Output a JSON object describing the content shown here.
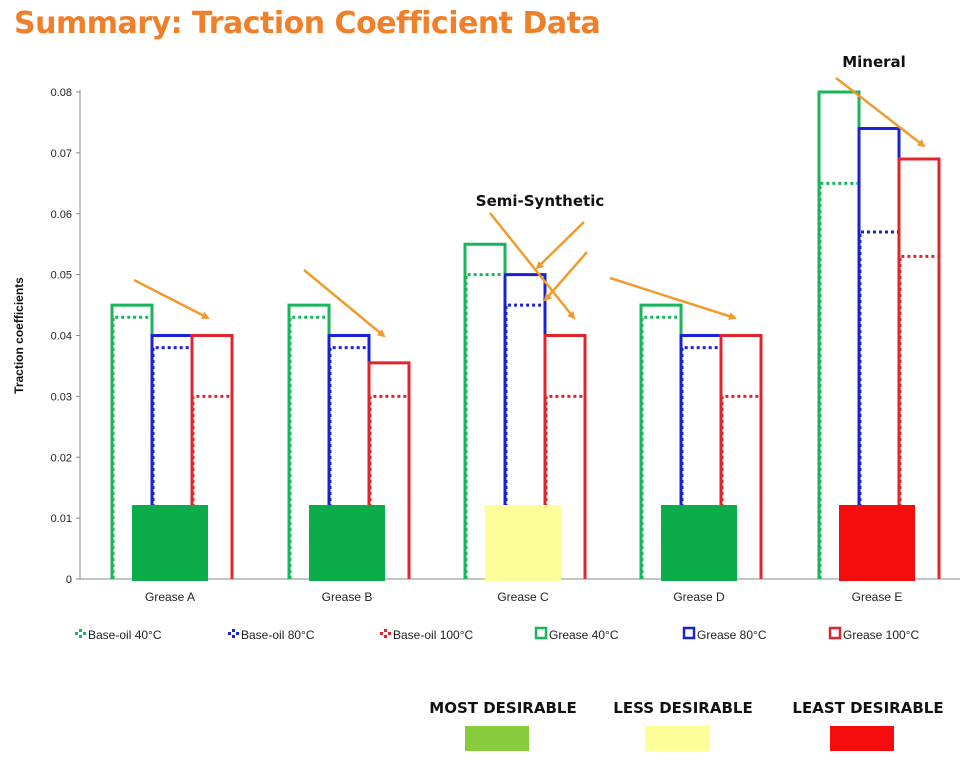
{
  "title": "Summary: Traction Coefficient Data",
  "colors": {
    "title": "#f07f2a",
    "arrow": "#f39a2c",
    "green": "#18b55a",
    "blue": "#1a22d6",
    "red": "#e0262c",
    "most": "#0aad4a",
    "less": "#fdfd9a",
    "least": "#f50d0d",
    "key_most": "#86cc3c",
    "key_less": "#fdfd9a",
    "key_least": "#f50d0d"
  },
  "chart_data": {
    "type": "bar",
    "ylabel": "Traction coefficients",
    "xlabel": "",
    "ylim": [
      0,
      0.08
    ],
    "yticks": [
      "0",
      "0.01",
      "0.02",
      "0.03",
      "0.04",
      "0.05",
      "0.06",
      "0.07",
      "0.08"
    ],
    "grid": false,
    "legend_position": "bottom",
    "categories": [
      "Grease A",
      "Grease B",
      "Grease C",
      "Grease D",
      "Grease E"
    ],
    "series": [
      {
        "name": "Base-oil 40°C",
        "style": "dotted",
        "color": "green",
        "values": [
          0.043,
          0.043,
          0.05,
          0.043,
          0.065
        ]
      },
      {
        "name": "Base-oil 80°C",
        "style": "dotted",
        "color": "blue",
        "values": [
          0.038,
          0.038,
          0.045,
          0.038,
          0.057
        ]
      },
      {
        "name": "Base-oil 100°C",
        "style": "dotted",
        "color": "red",
        "values": [
          0.03,
          0.03,
          0.03,
          0.03,
          0.053
        ]
      },
      {
        "name": "Grease 40°C",
        "style": "outline",
        "color": "green",
        "values": [
          0.045,
          0.045,
          0.055,
          0.045,
          0.08
        ]
      },
      {
        "name": "Grease 80°C",
        "style": "outline",
        "color": "blue",
        "values": [
          0.04,
          0.04,
          0.05,
          0.04,
          0.074
        ]
      },
      {
        "name": "Grease 100°C",
        "style": "outline",
        "color": "red",
        "values": [
          0.04,
          0.0355,
          0.04,
          0.04,
          0.069
        ]
      }
    ],
    "desirability": [
      "most",
      "most",
      "less",
      "most",
      "least"
    ],
    "annotations": [
      {
        "text": "Semi-Synthetic",
        "category": "Grease C"
      },
      {
        "text": "Mineral",
        "category": "Grease E"
      }
    ]
  },
  "desirability_key": [
    {
      "label": "MOST DESIRABLE",
      "color": "key_most"
    },
    {
      "label": "LESS DESIRABLE",
      "color": "key_less"
    },
    {
      "label": "LEAST DESIRABLE",
      "color": "key_least"
    }
  ]
}
